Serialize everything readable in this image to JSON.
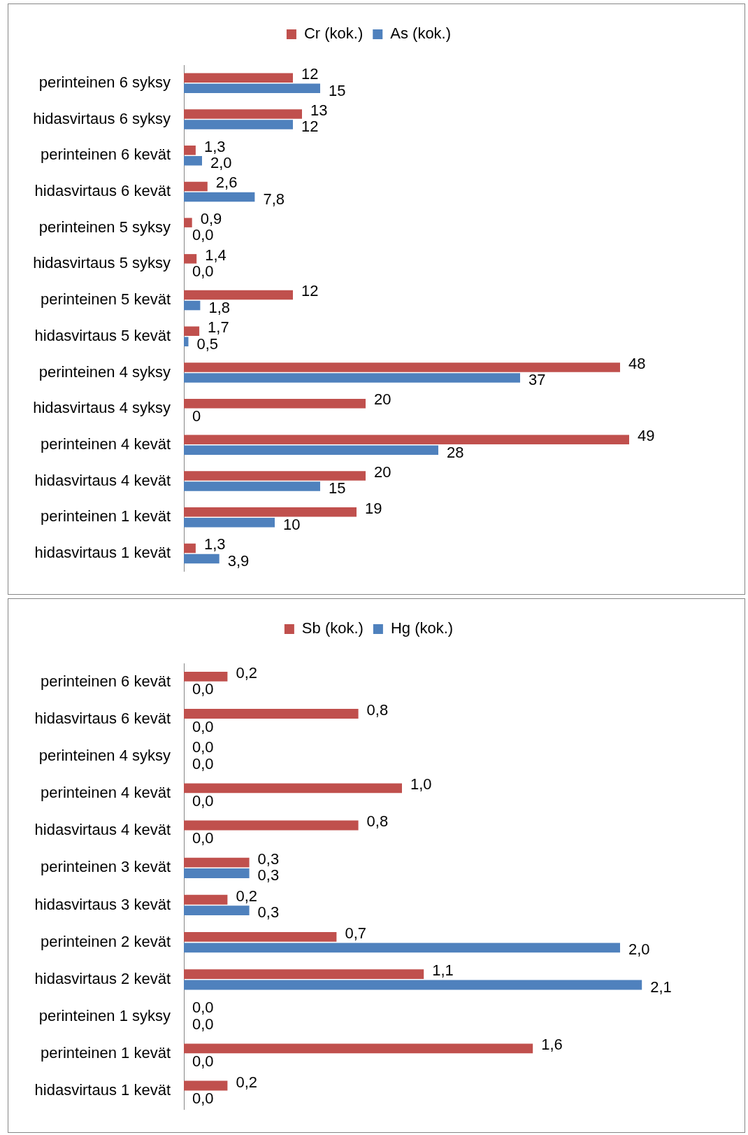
{
  "chart_data": [
    {
      "type": "bar",
      "orientation": "horizontal",
      "legend": "top",
      "tick_labels": "y",
      "categories": [
        "perinteinen 6 syksy",
        "hidasvirtaus 6 syksy",
        "perinteinen 6 kevät",
        "hidasvirtaus 6 kevät",
        "perinteinen 5 syksy",
        "hidasvirtaus 5 syksy",
        "perinteinen 5 kevät",
        "hidasvirtaus 5 kevät",
        "perinteinen 4 syksy",
        "hidasvirtaus 4 syksy",
        "perinteinen 4 kevät",
        "hidasvirtaus 4 kevät",
        "perinteinen 1 kevät",
        "hidasvirtaus 1 kevät"
      ],
      "series": [
        {
          "name": "Cr (kok.)",
          "color": "#c0504d",
          "values": [
            12,
            13,
            1.3,
            2.6,
            0.9,
            1.4,
            12,
            1.7,
            48,
            20,
            49,
            20,
            19,
            1.3
          ],
          "value_labels": [
            "12",
            "13",
            "1,3",
            "2,6",
            "0,9",
            "1,4",
            "12",
            "1,7",
            "48",
            "20",
            "49",
            "20",
            "19",
            "1,3"
          ]
        },
        {
          "name": "As (kok.)",
          "color": "#4f81bd",
          "values": [
            15,
            12,
            2.0,
            7.8,
            0.0,
            0.0,
            1.8,
            0.5,
            37,
            0,
            28,
            15,
            10,
            3.9
          ],
          "value_labels": [
            "15",
            "12",
            "2,0",
            "7,8",
            "0,0",
            "0,0",
            "1,8",
            "0,5",
            "37",
            "0",
            "28",
            "15",
            "10",
            "3,9"
          ]
        }
      ]
    },
    {
      "type": "bar",
      "orientation": "horizontal",
      "legend": "top",
      "tick_labels": "y",
      "categories": [
        "perinteinen 6 kevät",
        "hidasvirtaus 6 kevät",
        "perinteinen 4 syksy",
        "perinteinen 4 kevät",
        "hidasvirtaus 4 kevät",
        "perinteinen 3 kevät",
        "hidasvirtaus 3 kevät",
        "perinteinen 2 kevät",
        "hidasvirtaus 2 kevät",
        "perinteinen 1 syksy",
        "perinteinen 1 kevät",
        "hidasvirtaus 1 kevät"
      ],
      "series": [
        {
          "name": "Sb (kok.)",
          "color": "#c0504d",
          "values": [
            0.2,
            0.8,
            0.0,
            1.0,
            0.8,
            0.3,
            0.2,
            0.7,
            1.1,
            0.0,
            1.6,
            0.2
          ],
          "value_labels": [
            "0,2",
            "0,8",
            "0,0",
            "1,0",
            "0,8",
            "0,3",
            "0,2",
            "0,7",
            "1,1",
            "0,0",
            "1,6",
            "0,2"
          ]
        },
        {
          "name": "Hg (kok.)",
          "color": "#4f81bd",
          "values": [
            0.0,
            0.0,
            0.0,
            0.0,
            0.0,
            0.3,
            0.3,
            2.0,
            2.1,
            0.0,
            0.0,
            0.0
          ],
          "value_labels": [
            "0,0",
            "0,0",
            "0,0",
            "0,0",
            "0,0",
            "0,3",
            "0,3",
            "2,0",
            "2,1",
            "0,0",
            "0,0",
            "0,0"
          ]
        }
      ]
    }
  ]
}
